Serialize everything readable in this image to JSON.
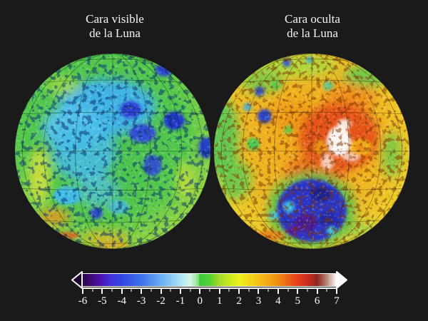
{
  "page": {
    "background": "#1a1a1a"
  },
  "titles": {
    "left": {
      "line1": "Cara visible",
      "line2": "de la Luna"
    },
    "right": {
      "line1": "Cara oculta",
      "line2": "de la Luna"
    }
  },
  "colorbar": {
    "min": -6,
    "max": 7,
    "tick_color": "#ffffff",
    "label_color": "#ffffff",
    "arrow_left_color": "#20052e",
    "arrow_right_color": "#ffffff",
    "ticks": [
      {
        "value": -6,
        "label": "-6"
      },
      {
        "value": -5,
        "label": "-5"
      },
      {
        "value": -4,
        "label": "-4"
      },
      {
        "value": -3,
        "label": "-3"
      },
      {
        "value": -2,
        "label": "-2"
      },
      {
        "value": -1,
        "label": "-1"
      },
      {
        "value": 0,
        "label": "0"
      },
      {
        "value": 1,
        "label": "1"
      },
      {
        "value": 2,
        "label": "2"
      },
      {
        "value": 3,
        "label": "3"
      },
      {
        "value": 4,
        "label": "4"
      },
      {
        "value": 5,
        "label": "5"
      },
      {
        "value": 6,
        "label": "6"
      },
      {
        "value": 7,
        "label": "7"
      }
    ],
    "gradient_stops": [
      {
        "value": -6,
        "color": "#30054c"
      },
      {
        "value": -5.2,
        "color": "#4b0ca2"
      },
      {
        "value": -4.6,
        "color": "#4630dc"
      },
      {
        "value": -4,
        "color": "#3147e2"
      },
      {
        "value": -3,
        "color": "#3f70ec"
      },
      {
        "value": -2,
        "color": "#69adf4"
      },
      {
        "value": -1,
        "color": "#a9e3f2"
      },
      {
        "value": -0.5,
        "color": "#d8f6ec"
      },
      {
        "value": -0.1,
        "color": "#8fe08c"
      },
      {
        "value": 0,
        "color": "#3ecb3e"
      },
      {
        "value": 0.5,
        "color": "#52d132"
      },
      {
        "value": 1,
        "color": "#a5dd28"
      },
      {
        "value": 2,
        "color": "#eef01e"
      },
      {
        "value": 3,
        "color": "#f5c116"
      },
      {
        "value": 4,
        "color": "#f08c10"
      },
      {
        "value": 5,
        "color": "#e63e1a"
      },
      {
        "value": 5.6,
        "color": "#c42a1c"
      },
      {
        "value": 6,
        "color": "#8e241c"
      },
      {
        "value": 6.5,
        "color": "#b98878"
      },
      {
        "value": 7,
        "color": "#ffffff"
      }
    ]
  },
  "chart_data": {
    "type": "heatmap",
    "title": "",
    "panels": [
      {
        "label": "Cara visible de la Luna"
      },
      {
        "label": "Cara oculta de la Luna"
      }
    ],
    "colorbar_range": [
      -6,
      7
    ],
    "colorbar_tick_labels": [
      "-6",
      "-5",
      "-4",
      "-3",
      "-2",
      "-1",
      "0",
      "1",
      "2",
      "3",
      "4",
      "5",
      "6",
      "7"
    ],
    "legend_position": "bottom"
  }
}
